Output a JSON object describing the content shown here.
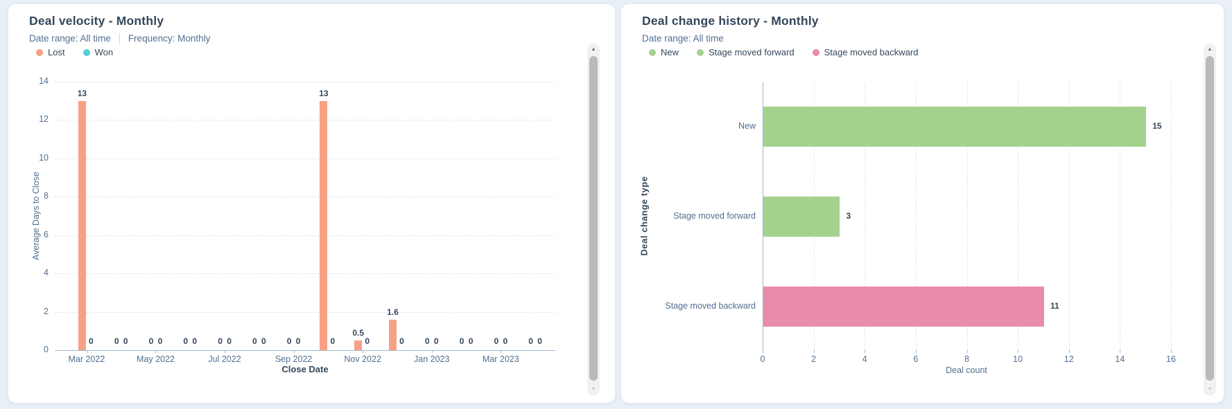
{
  "page": {
    "background": "#e9eff7"
  },
  "panels": {
    "deal_velocity": {
      "title": "Deal velocity - Monthly",
      "meta": [
        {
          "text": "Date range: All time"
        },
        {
          "text": "Frequency: Monthly"
        }
      ],
      "legend": [
        {
          "label": "Lost",
          "color": "#f8a084"
        },
        {
          "label": "Won",
          "color": "#4ed1d6"
        }
      ],
      "chart_data": {
        "type": "bar",
        "title": "Deal velocity - Monthly",
        "categories": [
          "Mar 2022",
          "Apr 2022",
          "May 2022",
          "Jun 2022",
          "Jul 2022",
          "Aug 2022",
          "Sep 2022",
          "Oct 2022",
          "Nov 2022",
          "Dec 2022",
          "Jan 2023",
          "Feb 2023",
          "Mar 2023",
          "Apr 2023"
        ],
        "series": [
          {
            "name": "Lost",
            "color": "#f8a084",
            "values": [
              13,
              0,
              0,
              0,
              0,
              0,
              0,
              13,
              0.5,
              1.6,
              0,
              0,
              0,
              0
            ]
          },
          {
            "name": "Won",
            "color": "#4ed1d6",
            "values": [
              0,
              0,
              0,
              0,
              0,
              0,
              0,
              0,
              0,
              0,
              0,
              0,
              0,
              0
            ]
          }
        ],
        "xlabel": "Close Date",
        "ylabel": "Average Days to Close",
        "ylim": [
          0,
          14
        ],
        "yticks": [
          0,
          2,
          4,
          6,
          8,
          10,
          12,
          14
        ],
        "xtick_labels_shown": [
          "Mar 2022",
          "May 2022",
          "Jul 2022",
          "Sep 2022",
          "Nov 2022",
          "Jan 2023",
          "Mar 2023"
        ],
        "grid": "horizontal dashed",
        "legend_position": "top-left"
      }
    },
    "deal_change_history": {
      "title": "Deal change history - Monthly",
      "meta": [
        {
          "text": "Date range: All time"
        }
      ],
      "legend": [
        {
          "label": "New",
          "color": "#a4d28e"
        },
        {
          "label": "Stage moved forward",
          "color": "#a4d28e"
        },
        {
          "label": "Stage moved backward",
          "color": "#e98bab"
        }
      ],
      "chart_data": {
        "type": "bar-horizontal",
        "title": "Deal change history - Monthly",
        "categories": [
          "New",
          "Stage moved forward",
          "Stage moved backward"
        ],
        "values": [
          15,
          3,
          11
        ],
        "colors": [
          "#a4d28e",
          "#a4d28e",
          "#e98bab"
        ],
        "xlabel": "Deal count",
        "ylabel": "Deal change type",
        "xlim": [
          0,
          16
        ],
        "xticks": [
          0,
          2,
          4,
          6,
          8,
          10,
          12,
          14,
          16
        ],
        "grid": "vertical dashed",
        "legend_position": "top-left"
      }
    }
  }
}
